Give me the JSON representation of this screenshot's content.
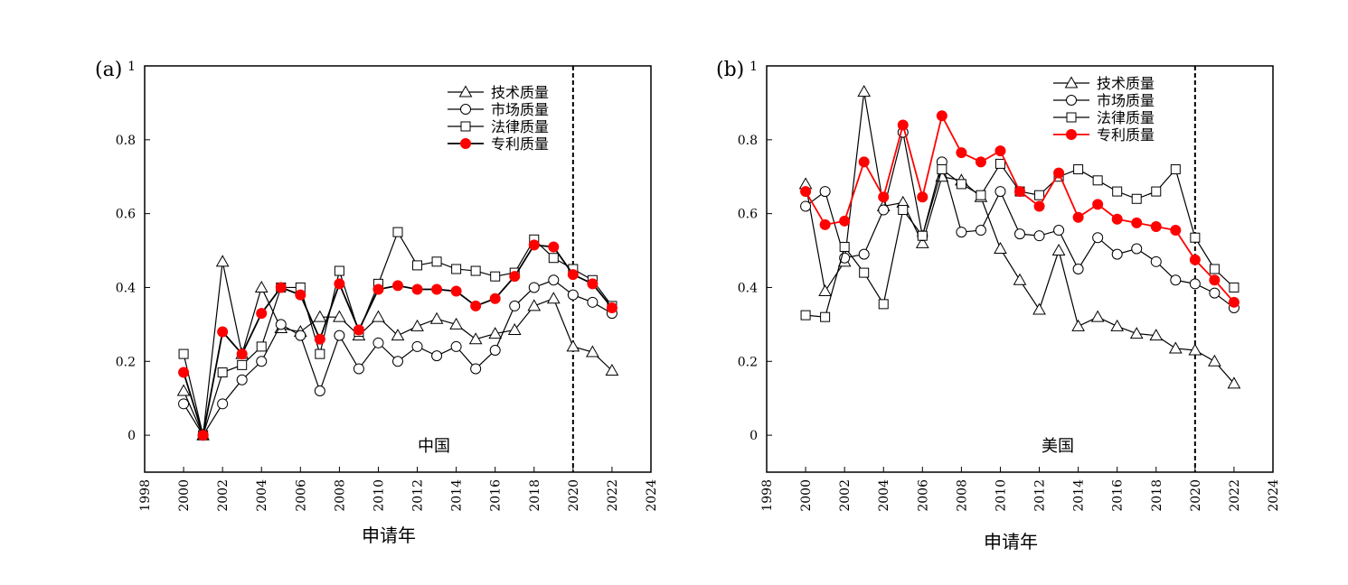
{
  "chart_data": [
    {
      "type": "line",
      "panel_label": "(a)",
      "annotation": "中国",
      "xlabel": "申请年",
      "ylabel": "",
      "xlim": [
        1998,
        2024
      ],
      "ylim": [
        -0.1,
        1
      ],
      "xticks": [
        1998,
        2000,
        2002,
        2004,
        2006,
        2008,
        2010,
        2012,
        2014,
        2016,
        2018,
        2020,
        2022,
        2024
      ],
      "yticks": [
        0,
        0.2,
        0.4,
        0.6,
        0.8,
        1
      ],
      "ytick_labels": [
        "0",
        "0.2",
        "0.4",
        "0.6",
        "0.8",
        "1"
      ],
      "vline_dashed": 2020,
      "legend_position": "top-right",
      "x": [
        2000,
        2001,
        2002,
        2003,
        2004,
        2005,
        2006,
        2007,
        2008,
        2009,
        2010,
        2011,
        2012,
        2013,
        2014,
        2015,
        2016,
        2017,
        2018,
        2019,
        2020,
        2021,
        2022
      ],
      "series": [
        {
          "name": "技术质量",
          "marker": "triangle",
          "line_color": "#000000",
          "marker_fill": "#ffffff",
          "values": [
            0.12,
            0,
            0.47,
            0.22,
            0.4,
            0.29,
            0.28,
            0.32,
            0.32,
            0.27,
            0.32,
            0.27,
            0.295,
            0.315,
            0.3,
            0.26,
            0.275,
            0.285,
            0.35,
            0.37,
            0.24,
            0.225,
            0.175
          ]
        },
        {
          "name": "市场质量",
          "marker": "circle",
          "line_color": "#000000",
          "marker_fill": "#ffffff",
          "values": [
            0.085,
            0,
            0.085,
            0.15,
            0.2,
            0.3,
            0.27,
            0.12,
            0.27,
            0.18,
            0.25,
            0.2,
            0.24,
            0.215,
            0.24,
            0.18,
            0.23,
            0.35,
            0.4,
            0.42,
            0.38,
            0.36,
            0.33
          ]
        },
        {
          "name": "法律质量",
          "marker": "square",
          "line_color": "#000000",
          "marker_fill": "#ffffff",
          "values": [
            0.22,
            0,
            0.17,
            0.19,
            0.24,
            0.4,
            0.4,
            0.22,
            0.445,
            0.28,
            0.41,
            0.55,
            0.46,
            0.47,
            0.45,
            0.445,
            0.43,
            0.44,
            0.53,
            0.48,
            0.45,
            0.42,
            0.35
          ]
        },
        {
          "name": "专利质量",
          "marker": "filled-circle",
          "line_color": "#000000",
          "marker_fill": "#ff0000",
          "values": [
            0.17,
            0,
            0.28,
            0.22,
            0.33,
            0.4,
            0.38,
            0.26,
            0.41,
            0.285,
            0.395,
            0.405,
            0.395,
            0.395,
            0.39,
            0.35,
            0.37,
            0.43,
            0.515,
            0.51,
            0.435,
            0.41,
            0.345
          ]
        }
      ]
    },
    {
      "type": "line",
      "panel_label": "(b)",
      "annotation": "美国",
      "xlabel": "申请年",
      "ylabel": "",
      "xlim": [
        1998,
        2024
      ],
      "ylim": [
        -0.1,
        1
      ],
      "xticks": [
        1998,
        2000,
        2002,
        2004,
        2006,
        2008,
        2010,
        2012,
        2014,
        2016,
        2018,
        2020,
        2022,
        2024
      ],
      "yticks": [
        0,
        0.2,
        0.4,
        0.6,
        0.8,
        1
      ],
      "ytick_labels": [
        "0",
        "0.2",
        "0.4",
        "0.6",
        "0.8",
        "1"
      ],
      "vline_dashed": 2020,
      "legend_position": "top-right",
      "x": [
        2000,
        2001,
        2002,
        2003,
        2004,
        2005,
        2006,
        2007,
        2008,
        2009,
        2010,
        2011,
        2012,
        2013,
        2014,
        2015,
        2016,
        2017,
        2018,
        2019,
        2020,
        2021,
        2022
      ],
      "series": [
        {
          "name": "技术质量",
          "marker": "triangle",
          "line_color": "#000000",
          "marker_fill": "#ffffff",
          "values": [
            0.68,
            0.39,
            0.47,
            0.93,
            0.62,
            0.63,
            0.52,
            0.7,
            0.69,
            0.645,
            0.505,
            0.42,
            0.34,
            0.5,
            0.295,
            0.32,
            0.295,
            0.275,
            0.27,
            0.235,
            0.23,
            0.2,
            0.14
          ]
        },
        {
          "name": "市场质量",
          "marker": "circle",
          "line_color": "#000000",
          "marker_fill": "#ffffff",
          "values": [
            0.62,
            0.66,
            0.48,
            0.49,
            0.61,
            0.82,
            0.54,
            0.74,
            0.55,
            0.555,
            0.66,
            0.545,
            0.54,
            0.555,
            0.45,
            0.535,
            0.49,
            0.505,
            0.47,
            0.42,
            0.41,
            0.385,
            0.345
          ]
        },
        {
          "name": "法律质量",
          "marker": "square",
          "line_color": "#000000",
          "marker_fill": "#ffffff",
          "values": [
            0.325,
            0.32,
            0.51,
            0.44,
            0.355,
            0.61,
            0.54,
            0.72,
            0.68,
            0.65,
            0.735,
            0.66,
            0.65,
            0.7,
            0.72,
            0.69,
            0.66,
            0.64,
            0.66,
            0.72,
            0.535,
            0.45,
            0.4
          ]
        },
        {
          "name": "专利质量",
          "marker": "filled-circle",
          "line_color": "#ff0000",
          "marker_fill": "#ff0000",
          "values": [
            0.66,
            0.57,
            0.58,
            0.74,
            0.645,
            0.84,
            0.645,
            0.865,
            0.765,
            0.74,
            0.77,
            0.66,
            0.62,
            0.71,
            0.59,
            0.625,
            0.585,
            0.575,
            0.565,
            0.555,
            0.475,
            0.42,
            0.36
          ]
        }
      ]
    }
  ]
}
